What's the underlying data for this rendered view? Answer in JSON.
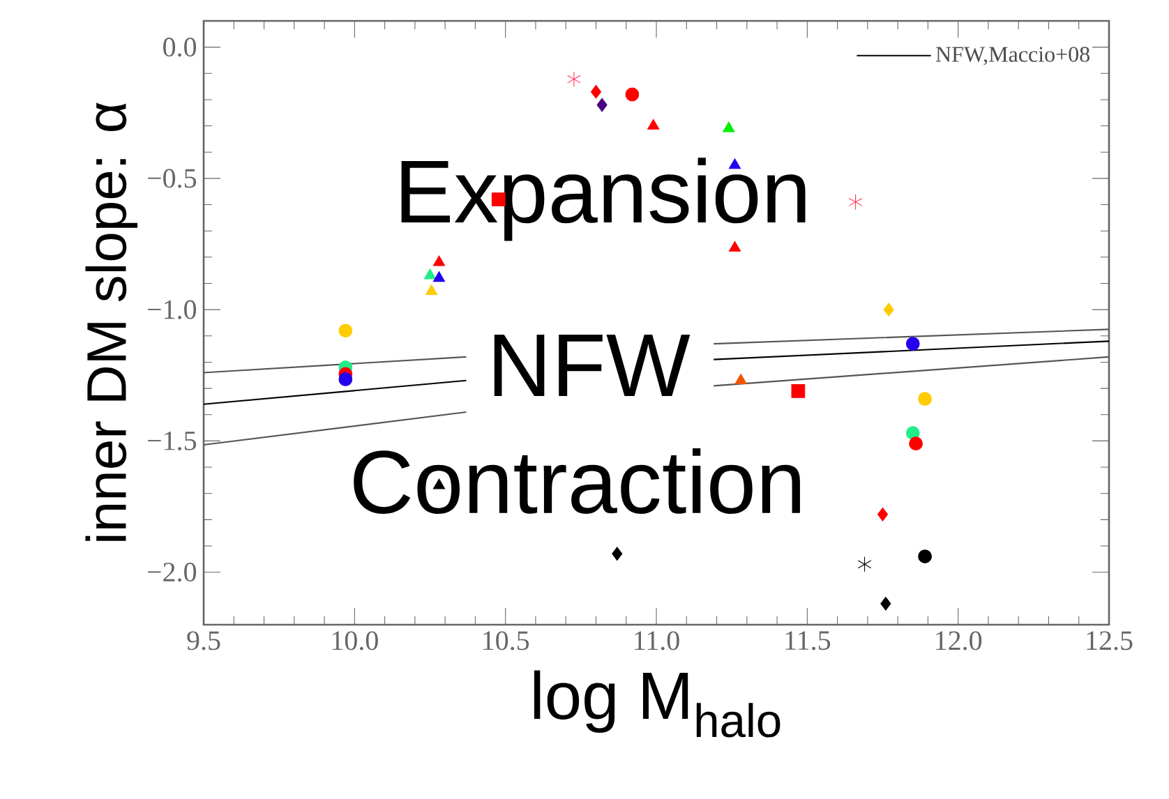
{
  "chart_data": {
    "type": "scatter",
    "xlabel": "log M$_{halo}$",
    "ylabel": "inner DM slope: α",
    "xlim": [
      9.5,
      12.5
    ],
    "ylim": [
      -2.2,
      0.1
    ],
    "xticks": [
      9.5,
      {
        "value": 10,
        "label": "10.0"
      },
      10.5,
      {
        "value": 11,
        "label": "11.0"
      },
      11.5,
      {
        "value": 12,
        "label": "12.0"
      },
      12.5
    ],
    "yticks": [
      {
        "value": 0,
        "label": "0.0"
      },
      {
        "value": -0.5,
        "label": "−0.5"
      },
      {
        "value": -1,
        "label": "−1.0"
      },
      {
        "value": -1.5,
        "label": "−1.5"
      },
      {
        "value": -2,
        "label": "−2.0"
      }
    ],
    "annotations": [
      "Expansion",
      "NFW",
      "Contraction"
    ],
    "legend": "top right",
    "series": [
      {
        "type": "line",
        "color": "#555555",
        "marker": "none",
        "x": [
          9.5,
          10.37,
          10.8,
          11.19,
          12.5
        ],
        "values": [
          -1.24,
          -1.18,
          null,
          -1.13,
          -1.075
        ]
      },
      {
        "type": "line",
        "name": "NFW,Maccio+08",
        "color": "#000000",
        "marker": "none",
        "x": [
          9.5,
          10.37,
          10.8,
          11.19,
          12.5
        ],
        "values": [
          -1.36,
          -1.27,
          null,
          -1.19,
          -1.12
        ]
      },
      {
        "type": "line",
        "color": "#555555",
        "marker": "none",
        "x": [
          9.5,
          10.37,
          10.8,
          11.19,
          12.5
        ],
        "values": [
          -1.515,
          -1.39,
          null,
          -1.29,
          -1.18
        ]
      },
      {
        "marker": "circle",
        "x": [
          9.97,
          9.97,
          9.97,
          9.97,
          10.92,
          11.85,
          11.89,
          11.85,
          11.86,
          11.89
        ],
        "values": [
          -1.08,
          -1.22,
          -1.245,
          -1.265,
          -0.18,
          -1.13,
          -1.34,
          -1.47,
          -1.51,
          -1.94
        ],
        "colors": [
          "#ffcc00",
          "#22ee88",
          "#ff0000",
          "#2200ee",
          "#ff0000",
          "#2200ee",
          "#ffcc00",
          "#22ee88",
          "#ff0000",
          "#000000"
        ]
      },
      {
        "marker": "triangle",
        "x": [
          10.25,
          10.28,
          10.28,
          10.255,
          11.24,
          11.26,
          11.26,
          11.28,
          10.28,
          10.99
        ],
        "values": [
          -0.87,
          -0.82,
          -0.88,
          -0.93,
          -0.31,
          -0.45,
          -0.765,
          -1.27,
          -1.67,
          -0.3
        ],
        "colors": [
          "#22ee88",
          "#ff0000",
          "#2200ee",
          "#ffcc00",
          "#00ee00",
          "#2200ee",
          "#ff0000",
          "#ee5500",
          "#000000",
          "#ff0000"
        ]
      },
      {
        "marker": "diamond",
        "x": [
          10.8,
          10.82,
          11.77,
          11.75,
          10.87,
          11.76
        ],
        "values": [
          -0.17,
          -0.22,
          -1.0,
          -1.78,
          -1.93,
          -2.12
        ],
        "colors": [
          "#ff0000",
          "#4b0082",
          "#ffcc00",
          "#ff0000",
          "#000000",
          "#000000"
        ]
      },
      {
        "marker": "square",
        "x": [
          10.477,
          11.47
        ],
        "values": [
          -0.58,
          -1.31
        ],
        "colors": [
          "#ff0000",
          "#ff0000"
        ]
      },
      {
        "marker": "cross",
        "x": [
          10.727,
          11.66,
          11.69
        ],
        "values": [
          -0.122,
          -0.59,
          -1.97
        ],
        "colors": [
          "#ff3355",
          "#ff3355",
          "#000000"
        ]
      }
    ]
  }
}
